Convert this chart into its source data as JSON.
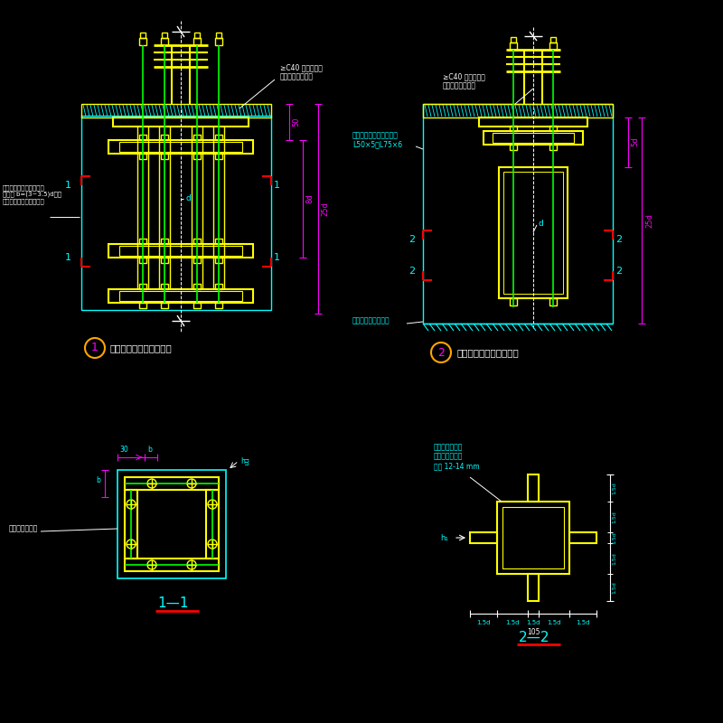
{
  "bg_color": "#000000",
  "cy": "#00FFFF",
  "ye": "#FFFF00",
  "wh": "#FFFFFF",
  "mg": "#FF00FF",
  "rd": "#FF0000",
  "gn": "#00FF00",
  "or": "#FFA500",
  "title1": "柱脚锚栓固定支架（一）",
  "title2": "柱脚锚栓固定支架（二）",
  "title3": "1—1",
  "title4": "2—2",
  "lbl_grout": "≥C40 无收缩细石\n混凝土或硫用砂浆",
  "lbl_angle1": "锚栓固定束角制，通常角\n钢胶宽 b=(3~3.5)d，胶\n厚单相应型号中之最厚者",
  "lbl_angle2": "锚栓固定架角制，通常用\nL50×5～L75×6",
  "lbl_elev": "锚栓固定架设置标高",
  "lbl_plan_angle": "锚栓固定束角制",
  "lbl_plate": "锚栓固定架隔板\n（兼作锚固板）\n板厚 12-14 mm",
  "lbl_d": "d",
  "dim_50": "50",
  "dim_8d": "8d",
  "dim_25d": "25d",
  "dim_5d": "5d",
  "dim_30": "30",
  "dim_b": "b",
  "dim_hf": "h_f",
  "dim_105": "105",
  "dim_15d": "1.5d"
}
